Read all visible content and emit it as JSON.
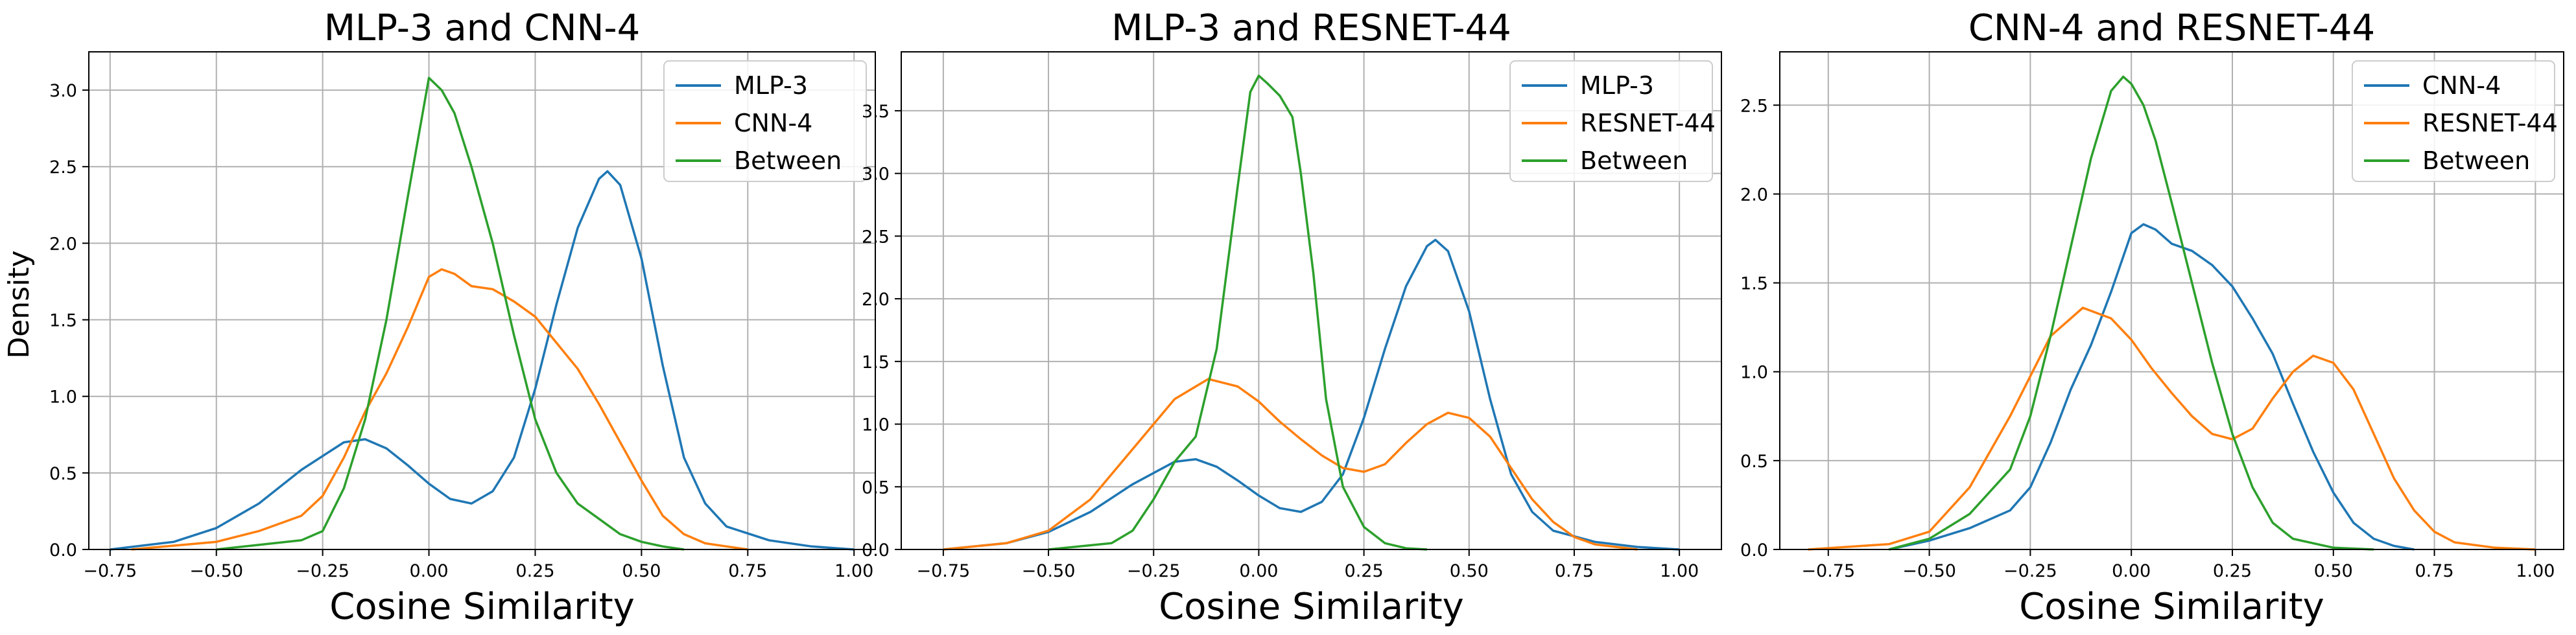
{
  "figure": {
    "ylabel": "Density"
  },
  "chart_data": [
    {
      "type": "line",
      "title": "MLP-3 and CNN-4",
      "xlabel": "Cosine Similarity",
      "ylabel": "Density",
      "xlim": [
        -0.8,
        1.05
      ],
      "ylim": [
        0,
        3.25
      ],
      "xticks": [
        -0.75,
        -0.5,
        -0.25,
        0.0,
        0.25,
        0.5,
        0.75,
        1.0
      ],
      "xtick_labels": [
        "−0.75",
        "−0.50",
        "−0.25",
        "0.00",
        "0.25",
        "0.50",
        "0.75",
        "1.00"
      ],
      "yticks": [
        0,
        0.5,
        1.0,
        1.5,
        2.0,
        2.5,
        3.0
      ],
      "ytick_labels": [
        "0.0",
        "0.5",
        "1.0",
        "1.5",
        "2.0",
        "2.5",
        "3.0"
      ],
      "grid": true,
      "legend": "top-right",
      "series": [
        {
          "name": "MLP-3",
          "color": "#1f77b4",
          "x": [
            -0.75,
            -0.6,
            -0.5,
            -0.4,
            -0.3,
            -0.2,
            -0.15,
            -0.1,
            -0.05,
            0.0,
            0.05,
            0.1,
            0.15,
            0.2,
            0.25,
            0.3,
            0.35,
            0.4,
            0.42,
            0.45,
            0.5,
            0.55,
            0.6,
            0.65,
            0.7,
            0.8,
            0.9,
            1.0
          ],
          "y": [
            0.0,
            0.05,
            0.14,
            0.3,
            0.52,
            0.7,
            0.72,
            0.66,
            0.55,
            0.43,
            0.33,
            0.3,
            0.38,
            0.6,
            1.05,
            1.6,
            2.1,
            2.42,
            2.47,
            2.38,
            1.9,
            1.2,
            0.6,
            0.3,
            0.15,
            0.06,
            0.02,
            0.0
          ]
        },
        {
          "name": "CNN-4",
          "color": "#ff7f0e",
          "x": [
            -0.7,
            -0.5,
            -0.4,
            -0.3,
            -0.25,
            -0.2,
            -0.15,
            -0.1,
            -0.05,
            0.0,
            0.03,
            0.06,
            0.1,
            0.15,
            0.2,
            0.25,
            0.3,
            0.35,
            0.4,
            0.45,
            0.5,
            0.55,
            0.6,
            0.65,
            0.7,
            0.75
          ],
          "y": [
            0.0,
            0.05,
            0.12,
            0.22,
            0.35,
            0.6,
            0.9,
            1.15,
            1.45,
            1.78,
            1.83,
            1.8,
            1.72,
            1.7,
            1.62,
            1.52,
            1.35,
            1.18,
            0.95,
            0.7,
            0.45,
            0.22,
            0.1,
            0.04,
            0.02,
            0.0
          ]
        },
        {
          "name": "Between",
          "color": "#2ca02c",
          "x": [
            -0.5,
            -0.3,
            -0.25,
            -0.2,
            -0.15,
            -0.1,
            -0.05,
            0.0,
            0.03,
            0.06,
            0.1,
            0.15,
            0.2,
            0.25,
            0.3,
            0.35,
            0.4,
            0.45,
            0.5,
            0.55,
            0.6
          ],
          "y": [
            0.0,
            0.06,
            0.12,
            0.4,
            0.85,
            1.5,
            2.3,
            3.08,
            3.0,
            2.85,
            2.5,
            2.0,
            1.4,
            0.85,
            0.5,
            0.3,
            0.2,
            0.1,
            0.05,
            0.02,
            0.0
          ]
        }
      ]
    },
    {
      "type": "line",
      "title": "MLP-3 and RESNET-44",
      "xlabel": "Cosine Similarity",
      "xlim": [
        -0.85,
        1.1
      ],
      "ylim": [
        0,
        3.97
      ],
      "xticks": [
        -0.75,
        -0.5,
        -0.25,
        0.0,
        0.25,
        0.5,
        0.75,
        1.0
      ],
      "xtick_labels": [
        "−0.75",
        "−0.50",
        "−0.25",
        "0.00",
        "0.25",
        "0.50",
        "0.75",
        "1.00"
      ],
      "yticks": [
        0,
        0.5,
        1.0,
        1.5,
        2.0,
        2.5,
        3.0,
        3.5
      ],
      "ytick_labels": [
        "0.0",
        "0.5",
        "1.0",
        "1.5",
        "2.0",
        "2.5",
        "3.0",
        "3.5"
      ],
      "grid": true,
      "legend": "top-right",
      "series": [
        {
          "name": "MLP-3",
          "color": "#1f77b4",
          "x": [
            -0.75,
            -0.6,
            -0.5,
            -0.4,
            -0.3,
            -0.2,
            -0.15,
            -0.1,
            -0.05,
            0.0,
            0.05,
            0.1,
            0.15,
            0.2,
            0.25,
            0.3,
            0.35,
            0.4,
            0.42,
            0.45,
            0.5,
            0.55,
            0.6,
            0.65,
            0.7,
            0.8,
            0.9,
            1.0
          ],
          "y": [
            0.0,
            0.05,
            0.14,
            0.3,
            0.52,
            0.7,
            0.72,
            0.66,
            0.55,
            0.43,
            0.33,
            0.3,
            0.38,
            0.6,
            1.05,
            1.6,
            2.1,
            2.42,
            2.47,
            2.38,
            1.9,
            1.2,
            0.6,
            0.3,
            0.15,
            0.06,
            0.02,
            0.0
          ]
        },
        {
          "name": "RESNET-44",
          "color": "#ff7f0e",
          "x": [
            -0.75,
            -0.6,
            -0.5,
            -0.4,
            -0.3,
            -0.2,
            -0.12,
            -0.05,
            0.0,
            0.05,
            0.1,
            0.15,
            0.2,
            0.25,
            0.3,
            0.35,
            0.4,
            0.45,
            0.5,
            0.55,
            0.6,
            0.65,
            0.7,
            0.75,
            0.8,
            0.9
          ],
          "y": [
            0.0,
            0.05,
            0.15,
            0.4,
            0.8,
            1.2,
            1.36,
            1.3,
            1.18,
            1.02,
            0.88,
            0.75,
            0.65,
            0.62,
            0.68,
            0.85,
            1.0,
            1.09,
            1.05,
            0.9,
            0.65,
            0.4,
            0.22,
            0.1,
            0.04,
            0.0
          ]
        },
        {
          "name": "Between",
          "color": "#2ca02c",
          "x": [
            -0.5,
            -0.35,
            -0.3,
            -0.25,
            -0.2,
            -0.15,
            -0.1,
            -0.05,
            -0.02,
            0.0,
            0.02,
            0.05,
            0.08,
            0.1,
            0.13,
            0.16,
            0.2,
            0.25,
            0.3,
            0.35,
            0.4
          ],
          "y": [
            0.0,
            0.05,
            0.15,
            0.4,
            0.7,
            0.9,
            1.6,
            2.9,
            3.65,
            3.78,
            3.72,
            3.62,
            3.45,
            3.0,
            2.2,
            1.2,
            0.5,
            0.18,
            0.05,
            0.01,
            0.0
          ]
        }
      ]
    },
    {
      "type": "line",
      "title": "CNN-4 and RESNET-44",
      "xlabel": "Cosine Similarity",
      "xlim": [
        -0.87,
        1.07
      ],
      "ylim": [
        0,
        2.8
      ],
      "xticks": [
        -0.75,
        -0.5,
        -0.25,
        0.0,
        0.25,
        0.5,
        0.75,
        1.0
      ],
      "xtick_labels": [
        "−0.75",
        "−0.50",
        "−0.25",
        "0.00",
        "0.25",
        "0.50",
        "0.75",
        "1.00"
      ],
      "yticks": [
        0,
        0.5,
        1.0,
        1.5,
        2.0,
        2.5
      ],
      "ytick_labels": [
        "0.0",
        "0.5",
        "1.0",
        "1.5",
        "2.0",
        "2.5"
      ],
      "grid": true,
      "legend": "top-right",
      "series": [
        {
          "name": "CNN-4",
          "color": "#1f77b4",
          "x": [
            -0.6,
            -0.5,
            -0.4,
            -0.3,
            -0.25,
            -0.2,
            -0.15,
            -0.1,
            -0.05,
            0.0,
            0.03,
            0.06,
            0.1,
            0.15,
            0.2,
            0.25,
            0.3,
            0.35,
            0.4,
            0.45,
            0.5,
            0.55,
            0.6,
            0.65,
            0.7
          ],
          "y": [
            0.0,
            0.05,
            0.12,
            0.22,
            0.35,
            0.6,
            0.9,
            1.15,
            1.45,
            1.78,
            1.83,
            1.8,
            1.72,
            1.68,
            1.6,
            1.48,
            1.3,
            1.1,
            0.82,
            0.55,
            0.32,
            0.15,
            0.06,
            0.02,
            0.0
          ]
        },
        {
          "name": "RESNET-44",
          "color": "#ff7f0e",
          "x": [
            -0.8,
            -0.6,
            -0.5,
            -0.4,
            -0.3,
            -0.2,
            -0.12,
            -0.05,
            0.0,
            0.05,
            0.1,
            0.15,
            0.2,
            0.25,
            0.3,
            0.35,
            0.4,
            0.45,
            0.5,
            0.55,
            0.6,
            0.65,
            0.7,
            0.75,
            0.8,
            0.9,
            1.0
          ],
          "y": [
            0.0,
            0.03,
            0.1,
            0.35,
            0.75,
            1.2,
            1.36,
            1.3,
            1.18,
            1.02,
            0.88,
            0.75,
            0.65,
            0.62,
            0.68,
            0.85,
            1.0,
            1.09,
            1.05,
            0.9,
            0.65,
            0.4,
            0.22,
            0.1,
            0.04,
            0.01,
            0.0
          ]
        },
        {
          "name": "Between",
          "color": "#2ca02c",
          "x": [
            -0.6,
            -0.5,
            -0.4,
            -0.3,
            -0.25,
            -0.2,
            -0.15,
            -0.1,
            -0.05,
            -0.02,
            0.0,
            0.03,
            0.06,
            0.1,
            0.15,
            0.2,
            0.25,
            0.3,
            0.35,
            0.4,
            0.5,
            0.6
          ],
          "y": [
            0.0,
            0.06,
            0.2,
            0.45,
            0.75,
            1.2,
            1.7,
            2.2,
            2.58,
            2.66,
            2.62,
            2.5,
            2.3,
            1.95,
            1.5,
            1.05,
            0.65,
            0.35,
            0.15,
            0.06,
            0.01,
            0.0
          ]
        }
      ]
    }
  ]
}
